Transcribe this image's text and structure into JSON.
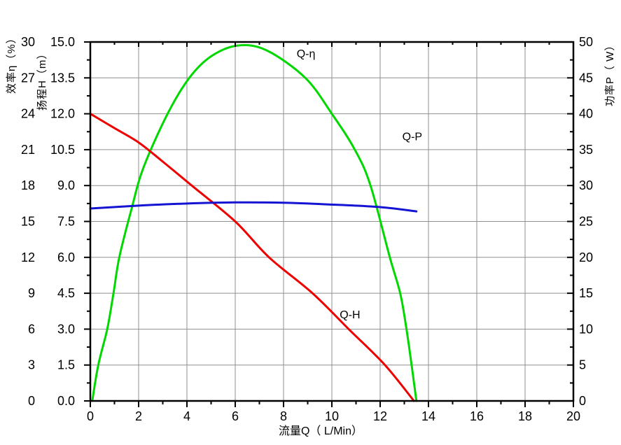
{
  "page": {
    "background": "#ffffff"
  },
  "chart_data": {
    "type": "line",
    "title": "",
    "grid": true,
    "grid_color": "#8f8f8f",
    "frame_color": "#000000",
    "x_axis": {
      "title": "流量Q（ L/Min）",
      "min": 0,
      "max": 20,
      "major_ticks": [
        0,
        2,
        4,
        6,
        8,
        10,
        12,
        14,
        16,
        18,
        20
      ],
      "minor_step": 1
    },
    "y_axes": [
      {
        "id": "eta",
        "side": "left-outer",
        "title": "效率η（%）",
        "min": 0,
        "max": 30,
        "major_ticks": [
          0,
          3,
          6,
          9,
          12,
          15,
          18,
          21,
          24,
          27,
          30
        ]
      },
      {
        "id": "H",
        "side": "left-inner",
        "title": "扬程H（m）",
        "min": 0,
        "max": 15,
        "major_tick_labels": [
          "0.0",
          "1.5",
          "3.0",
          "4.5",
          "6.0",
          "7.5",
          "9.0",
          "10.5",
          "12.0",
          "13.5",
          "15.0"
        ]
      },
      {
        "id": "P",
        "side": "right",
        "title": "功率P（ W）",
        "min": 0,
        "max": 50,
        "major_ticks": [
          0,
          5,
          10,
          15,
          20,
          25,
          30,
          35,
          40,
          45,
          50
        ]
      }
    ],
    "series": [
      {
        "name": "Q-η",
        "axis": "eta",
        "color": "#00d800",
        "points": [
          [
            0.08,
            0
          ],
          [
            0.33,
            3
          ],
          [
            0.7,
            6
          ],
          [
            0.96,
            9
          ],
          [
            1.2,
            12
          ],
          [
            1.7,
            16
          ],
          [
            2.2,
            19.5
          ],
          [
            3.2,
            24
          ],
          [
            4.1,
            27
          ],
          [
            5.0,
            28.8
          ],
          [
            6.1,
            29.7
          ],
          [
            7.3,
            29.3
          ],
          [
            8.9,
            27
          ],
          [
            10.0,
            24
          ],
          [
            10.95,
            21
          ],
          [
            11.6,
            18
          ],
          [
            12.4,
            12
          ],
          [
            12.83,
            9
          ],
          [
            13.09,
            6
          ],
          [
            13.3,
            3
          ],
          [
            13.5,
            0
          ]
        ]
      },
      {
        "name": "Q-H",
        "axis": "H",
        "color": "#ee0000",
        "points": [
          [
            0,
            12.0
          ],
          [
            1,
            11.4
          ],
          [
            2,
            10.8
          ],
          [
            3,
            10.0
          ],
          [
            4.2,
            9.0
          ],
          [
            6.0,
            7.5
          ],
          [
            7.4,
            6.0
          ],
          [
            9.2,
            4.5
          ],
          [
            10.7,
            3.0
          ],
          [
            12.2,
            1.5
          ],
          [
            13.4,
            0
          ]
        ]
      },
      {
        "name": "Q-P",
        "axis": "P",
        "color": "#1414d2",
        "points": [
          [
            0,
            26.8
          ],
          [
            2,
            27.2
          ],
          [
            4,
            27.5
          ],
          [
            6,
            27.65
          ],
          [
            8,
            27.6
          ],
          [
            10,
            27.35
          ],
          [
            12,
            27.0
          ],
          [
            13.5,
            26.4
          ]
        ]
      }
    ],
    "annotations": [
      {
        "text": "Q-η",
        "axis": "eta",
        "q": 8.93,
        "v": 28.7
      },
      {
        "text": "Q-P",
        "axis": "P",
        "q": 13.33,
        "v": 36.3
      },
      {
        "text": "Q-H",
        "axis": "H",
        "q": 10.75,
        "v": 3.45
      }
    ]
  }
}
